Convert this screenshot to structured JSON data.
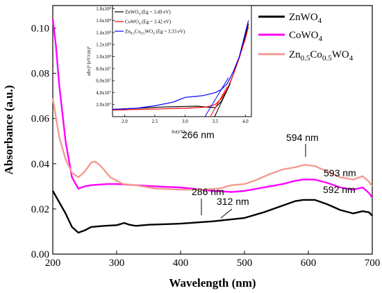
{
  "chart_data": [
    {
      "type": "line",
      "xlabel": "Wavelength (nm)",
      "ylabel": "Absorbance (a.u.)",
      "xlim": [
        200,
        700
      ],
      "ylim": [
        0,
        0.11
      ],
      "xticks": [
        "200",
        "300",
        "400",
        "500",
        "600",
        "700"
      ],
      "yticks": [
        "0.00",
        "0.02",
        "0.04",
        "0.06",
        "0.08",
        "0.10"
      ],
      "legend_position": "top-right",
      "series": [
        {
          "name": "ZnWO4",
          "color": "#000000",
          "points": [
            [
              200,
              0.028
            ],
            [
              210,
              0.023
            ],
            [
              220,
              0.018
            ],
            [
              230,
              0.012
            ],
            [
              240,
              0.0095
            ],
            [
              250,
              0.0105
            ],
            [
              260,
              0.012
            ],
            [
              280,
              0.0125
            ],
            [
              300,
              0.0128
            ],
            [
              312,
              0.0138
            ],
            [
              320,
              0.013
            ],
            [
              330,
              0.0125
            ],
            [
              350,
              0.013
            ],
            [
              400,
              0.0135
            ],
            [
              450,
              0.0145
            ],
            [
              500,
              0.016
            ],
            [
              530,
              0.0185
            ],
            [
              560,
              0.0215
            ],
            [
              580,
              0.0235
            ],
            [
              592,
              0.024
            ],
            [
              610,
              0.024
            ],
            [
              630,
              0.022
            ],
            [
              650,
              0.0195
            ],
            [
              670,
              0.018
            ],
            [
              685,
              0.019
            ],
            [
              695,
              0.0185
            ],
            [
              700,
              0.017
            ]
          ]
        },
        {
          "name": "CoWO4",
          "color": "#ff00ff",
          "points": [
            [
              200,
              0.104
            ],
            [
              205,
              0.092
            ],
            [
              210,
              0.075
            ],
            [
              220,
              0.05
            ],
            [
              230,
              0.034
            ],
            [
              240,
              0.029
            ],
            [
              250,
              0.03
            ],
            [
              260,
              0.0305
            ],
            [
              286,
              0.031
            ],
            [
              300,
              0.031
            ],
            [
              330,
              0.0305
            ],
            [
              360,
              0.03
            ],
            [
              400,
              0.0295
            ],
            [
              450,
              0.028
            ],
            [
              480,
              0.0275
            ],
            [
              500,
              0.028
            ],
            [
              530,
              0.0295
            ],
            [
              560,
              0.031
            ],
            [
              580,
              0.0325
            ],
            [
              593,
              0.033
            ],
            [
              610,
              0.033
            ],
            [
              630,
              0.0315
            ],
            [
              650,
              0.0295
            ],
            [
              670,
              0.0285
            ],
            [
              685,
              0.0295
            ],
            [
              695,
              0.027
            ],
            [
              700,
              0.025
            ]
          ]
        },
        {
          "name": "Zn0.5Co0.5WO4",
          "color": "#f49a91",
          "points": [
            [
              200,
              0.069
            ],
            [
              210,
              0.052
            ],
            [
              220,
              0.042
            ],
            [
              230,
              0.036
            ],
            [
              240,
              0.034
            ],
            [
              250,
              0.0365
            ],
            [
              260,
              0.0405
            ],
            [
              266,
              0.041
            ],
            [
              275,
              0.039
            ],
            [
              290,
              0.034
            ],
            [
              310,
              0.031
            ],
            [
              330,
              0.0305
            ],
            [
              360,
              0.029
            ],
            [
              400,
              0.0285
            ],
            [
              430,
              0.0285
            ],
            [
              460,
              0.029
            ],
            [
              480,
              0.0305
            ],
            [
              500,
              0.031
            ],
            [
              520,
              0.033
            ],
            [
              540,
              0.0355
            ],
            [
              560,
              0.0375
            ],
            [
              580,
              0.0385
            ],
            [
              594,
              0.0395
            ],
            [
              610,
              0.039
            ],
            [
              630,
              0.0365
            ],
            [
              650,
              0.034
            ],
            [
              670,
              0.033
            ],
            [
              685,
              0.0345
            ],
            [
              695,
              0.032
            ],
            [
              700,
              0.03
            ]
          ]
        }
      ],
      "annotations": [
        {
          "text": "266 nm",
          "x": 266,
          "y": 0.041
        },
        {
          "text": "286 nm",
          "x": 286,
          "y": 0.031
        },
        {
          "text": "312 nm",
          "x": 312,
          "y": 0.0138
        },
        {
          "text": "594 nm",
          "x": 594,
          "y": 0.0395
        },
        {
          "text": "593 nm",
          "x": 593,
          "y": 0.033
        },
        {
          "text": "592 nm",
          "x": 592,
          "y": 0.024
        }
      ]
    },
    {
      "type": "line",
      "xlabel": "hν(eV)",
      "ylabel": "αhν)² (eV/cm)²",
      "xlim": [
        1.8,
        4.1
      ],
      "ylim": [
        0,
        185000000.0
      ],
      "xticks": [
        "2.0",
        "2.5",
        "3.0",
        "3.5",
        "4.0"
      ],
      "yticks": [
        "2.0x10⁷",
        "4.0x10⁷",
        "6.0x10⁷",
        "8.0x10⁷",
        "1.0x10⁸",
        "1.2x10⁸",
        "1.4x10⁸",
        "1.6x10⁸",
        "1.8x10⁸"
      ],
      "legend_position": "top-left",
      "series": [
        {
          "name": "ZnWO4 (Eg = 3.49 eV)",
          "color": "#000000",
          "points": [
            [
              1.8,
              12000000.0
            ],
            [
              2.2,
              14000000.0
            ],
            [
              2.6,
              16000000.0
            ],
            [
              3.0,
              17000000.0
            ],
            [
              3.2,
              17500000.0
            ],
            [
              3.35,
              16000000.0
            ],
            [
              3.5,
              15000000.0
            ],
            [
              3.6,
              25000000.0
            ],
            [
              3.7,
              45000000.0
            ],
            [
              3.8,
              70000000.0
            ],
            [
              3.9,
              100000000.0
            ],
            [
              4.0,
              135000000.0
            ],
            [
              4.05,
              155000000.0
            ]
          ]
        },
        {
          "name": "CoWO4 (Eg = 3.42 eV)",
          "color": "#ff0000",
          "points": [
            [
              1.8,
              11000000.0
            ],
            [
              2.2,
              12000000.0
            ],
            [
              2.6,
              13000000.0
            ],
            [
              3.0,
              14000000.0
            ],
            [
              3.2,
              15000000.0
            ],
            [
              3.35,
              16000000.0
            ],
            [
              3.5,
              20000000.0
            ],
            [
              3.6,
              30000000.0
            ],
            [
              3.7,
              46000000.0
            ],
            [
              3.8,
              70000000.0
            ],
            [
              3.9,
              98000000.0
            ],
            [
              4.0,
              130000000.0
            ],
            [
              4.05,
              150000000.0
            ]
          ]
        },
        {
          "name": "Zn0.5Co0.5WO4 (Eg = 3.33 eV)",
          "color": "#0000ff",
          "points": [
            [
              1.8,
              12000000.0
            ],
            [
              2.2,
              14000000.0
            ],
            [
              2.5,
              18000000.0
            ],
            [
              2.8,
              24000000.0
            ],
            [
              3.0,
              32000000.0
            ],
            [
              3.2,
              34000000.0
            ],
            [
              3.3,
              35000000.0
            ],
            [
              3.5,
              40000000.0
            ],
            [
              3.6,
              45000000.0
            ],
            [
              3.7,
              55000000.0
            ],
            [
              3.8,
              75000000.0
            ],
            [
              3.9,
              100000000.0
            ],
            [
              4.0,
              140000000.0
            ],
            [
              4.05,
              160000000.0
            ]
          ]
        }
      ],
      "fit_lines": [
        {
          "color": "#000000",
          "from": [
            3.49,
            0
          ],
          "to": [
            3.75,
            55000000.0
          ]
        },
        {
          "color": "#ff0000",
          "from": [
            3.42,
            0
          ],
          "to": [
            3.7,
            50000000.0
          ]
        },
        {
          "color": "#0000ff",
          "from": [
            3.33,
            0
          ],
          "to": [
            3.72,
            65000000.0
          ]
        }
      ]
    }
  ]
}
